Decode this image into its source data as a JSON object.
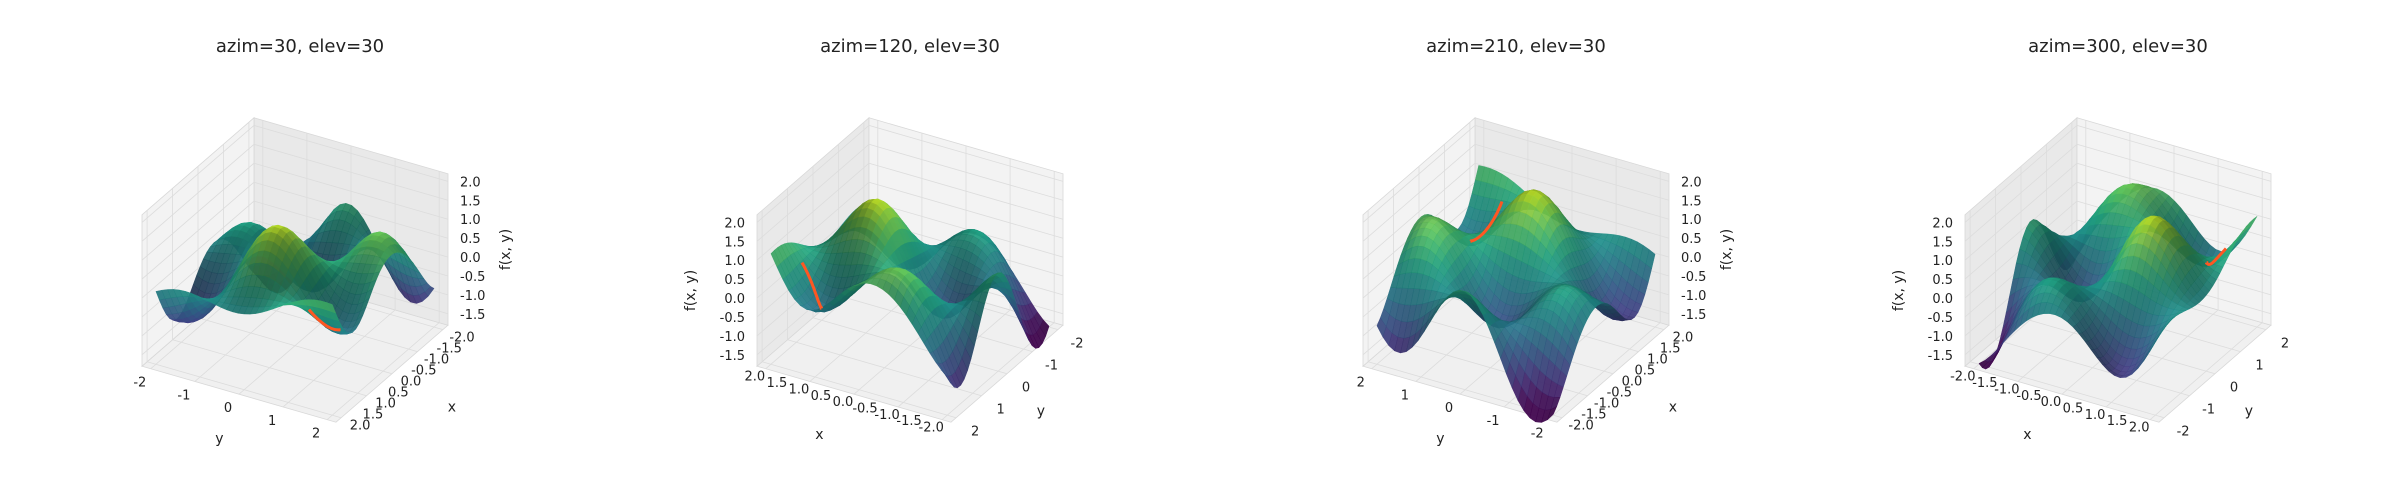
{
  "chart_data": [
    {
      "type": "surface3d",
      "title": "azim=30, elev=30",
      "azim": 30,
      "elev": 30,
      "xlabel": "x",
      "ylabel": "y",
      "zlabel": "f(x, y)",
      "xlim": [
        -2.2,
        2.2
      ],
      "ylim": [
        -2.2,
        2.2
      ],
      "zlim": [
        -1.8,
        2.2
      ],
      "xticks": [
        "-2.0",
        "-1.5",
        "-1.0",
        "-0.5",
        "0.0",
        "0.5",
        "1.0",
        "1.5",
        "2.0"
      ],
      "yticks": [
        "-2",
        "-1",
        "0",
        "1",
        "2"
      ],
      "zticks": [
        "-1.5",
        "-1.0",
        "-0.5",
        "0.0",
        "0.5",
        "1.0",
        "1.5",
        "2.0"
      ],
      "colormap": "viridis",
      "path_color": "#ff5722"
    },
    {
      "type": "surface3d",
      "title": "azim=120, elev=30",
      "azim": 120,
      "elev": 30,
      "xlabel": "x",
      "ylabel": "y",
      "zlabel": "f(x, y)",
      "xlim": [
        -2.2,
        2.2
      ],
      "ylim": [
        -2.2,
        2.2
      ],
      "zlim": [
        -1.8,
        2.2
      ],
      "xticks": [
        "2.0",
        "1.5",
        "1.0",
        "0.5",
        "0.0",
        "-0.5",
        "-1.0",
        "-1.5",
        "-2.0"
      ],
      "yticks": [
        "-2",
        "-1",
        "0",
        "1",
        "2"
      ],
      "zticks": [
        "-1.5",
        "-1.0",
        "-0.5",
        "0.0",
        "0.5",
        "1.0",
        "1.5",
        "2.0"
      ],
      "colormap": "viridis",
      "path_color": "#ff5722"
    },
    {
      "type": "surface3d",
      "title": "azim=210, elev=30",
      "azim": 210,
      "elev": 30,
      "xlabel": "x",
      "ylabel": "y",
      "zlabel": "f(x, y)",
      "xlim": [
        -2.2,
        2.2
      ],
      "ylim": [
        -2.2,
        2.2
      ],
      "zlim": [
        -1.8,
        2.2
      ],
      "xticks": [
        "2.0",
        "1.5",
        "1.0",
        "0.5",
        "0.0",
        "-0.5",
        "-1.0",
        "-1.5",
        "-2.0"
      ],
      "yticks": [
        "2",
        "1",
        "0",
        "-1",
        "-2"
      ],
      "zticks": [
        "-1.5",
        "-1.0",
        "-0.5",
        "0.0",
        "0.5",
        "1.0",
        "1.5",
        "2.0"
      ],
      "colormap": "viridis",
      "path_color": "#ff5722"
    },
    {
      "type": "surface3d",
      "title": "azim=300, elev=30",
      "azim": 300,
      "elev": 30,
      "xlabel": "x",
      "ylabel": "y",
      "zlabel": "f(x, y)",
      "xlim": [
        -2.2,
        2.2
      ],
      "ylim": [
        -2.2,
        2.2
      ],
      "zlim": [
        -1.8,
        2.2
      ],
      "xticks": [
        "-2.0",
        "-1.5",
        "-1.0",
        "-0.5",
        "0.0",
        "0.5",
        "1.0",
        "1.5",
        "2.0"
      ],
      "yticks": [
        "2",
        "1",
        "0",
        "-1",
        "-2"
      ],
      "zticks": [
        "-1.5",
        "-1.0",
        "-0.5",
        "0.0",
        "0.5",
        "1.0",
        "1.5",
        "2.0"
      ],
      "colormap": "viridis",
      "path_color": "#ff5722"
    }
  ]
}
